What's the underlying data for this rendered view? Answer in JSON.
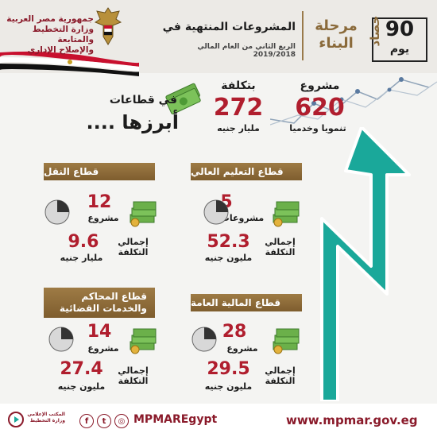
{
  "header": {
    "ministry": [
      "جمهورية مصر العربية",
      "وزارة التخطيط والمتابعة",
      "والإصلاح الإداري"
    ],
    "title": "المشروعات المنتهية في",
    "subtitle": "الربع الثاني من العام المالي 2019/2018",
    "phase": [
      "مرحلة",
      "البناء"
    ],
    "days_number": "90",
    "days_label": "يوم",
    "vertical_word": "حصاد"
  },
  "stats": {
    "projects": {
      "label": "مشروع",
      "value": "620",
      "sub": "تنمويا وخدميا"
    },
    "cost": {
      "label": "بتكلفة",
      "value": "272",
      "sub": "مليار جنيه"
    },
    "sectors_label": "في قطاعات",
    "notable_label": "أبرزها ...."
  },
  "cards": [
    {
      "title": "قطاع التعليم العالي",
      "count": "5",
      "count_unit": "مشروعات",
      "cost_label": [
        "إجمالي",
        "التكلفة"
      ],
      "cost": "52.3",
      "cost_unit": "مليون جنيه"
    },
    {
      "title": "قطاع النقل",
      "count": "12",
      "count_unit": "مشروع",
      "cost_label": [
        "إجمالي",
        "التكلفة"
      ],
      "cost": "9.6",
      "cost_unit": "مليار جنيه"
    },
    {
      "title": "قطاع المالية العامة",
      "count": "28",
      "count_unit": "مشروع",
      "cost_label": [
        "إجمالي",
        "التكلفة"
      ],
      "cost": "29.5",
      "cost_unit": "مليون جنيه"
    },
    {
      "title": "قطاع المحاكم والخدمات القضائية",
      "count": "14",
      "count_unit": "مشروع",
      "cost_label": [
        "إجمالي",
        "التكلفة"
      ],
      "cost": "27.4",
      "cost_unit": "مليون جنيه"
    }
  ],
  "footer": {
    "website": "www.mpmar.gov.eg",
    "social_handle": "MPMAREgypt",
    "social_icons": [
      "facebook-icon",
      "twitter-icon",
      "instagram-icon"
    ],
    "dept": [
      "المكتب الإعلامي",
      "وزارة التخطيط"
    ]
  },
  "colors": {
    "accent_red": "#b01e2e",
    "gold": "#9e7b45",
    "arrow_teal": "#1aa89a",
    "brand": "#8a1a2a"
  }
}
